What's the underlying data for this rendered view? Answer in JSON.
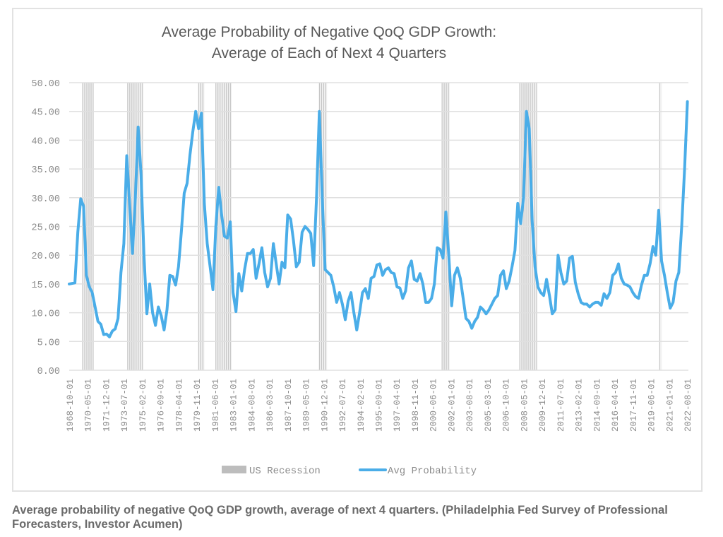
{
  "caption": "Average probability of negative QoQ GDP growth, average of next 4 quarters. (Philadelphia Fed Survey of Professional Forecasters, Investor Acumen)",
  "colors": {
    "line": "#4aade8",
    "recession": "#bdbdbd",
    "grid": "#e0e0e0",
    "text": "#8c8c8c",
    "title": "#595959"
  },
  "chart_data": {
    "type": "line",
    "title": "Average Probability of Negative QoQ GDP Growth:",
    "subtitle": "Average of Each of Next 4 Quarters",
    "xlabel": "",
    "ylabel": "",
    "ylim": [
      0,
      50
    ],
    "xlim": [
      "1968-10-01",
      "2022-08-01"
    ],
    "grid": true,
    "legend_position": "bottom",
    "y_ticks": [
      "0.00",
      "5.00",
      "10.00",
      "15.00",
      "20.00",
      "25.00",
      "30.00",
      "35.00",
      "40.00",
      "45.00",
      "50.00"
    ],
    "x_ticks": [
      "1968-10-01",
      "1970-05-01",
      "1971-12-01",
      "1973-07-01",
      "1975-02-01",
      "1976-09-01",
      "1978-04-01",
      "1979-11-01",
      "1981-06-01",
      "1983-01-01",
      "1984-08-01",
      "1986-03-01",
      "1987-10-01",
      "1989-05-01",
      "1990-12-01",
      "1992-07-01",
      "1994-02-01",
      "1995-09-01",
      "1997-04-01",
      "1998-11-01",
      "2000-06-01",
      "2002-01-01",
      "2003-08-01",
      "2005-03-01",
      "2006-10-01",
      "2008-05-01",
      "2009-12-01",
      "2011-07-01",
      "2013-02-01",
      "2014-09-01",
      "2016-04-01",
      "2017-11-01",
      "2019-06-01",
      "2021-01-01",
      "2022-08-01"
    ],
    "legend": [
      {
        "name": "US Recession",
        "kind": "bar"
      },
      {
        "name": "Avg Probability",
        "kind": "line"
      }
    ],
    "recessions": [
      {
        "start": "1969-12-01",
        "end": "1970-11-01"
      },
      {
        "start": "1973-11-01",
        "end": "1975-03-01"
      },
      {
        "start": "1980-01-01",
        "end": "1980-07-01"
      },
      {
        "start": "1981-07-01",
        "end": "1982-11-01"
      },
      {
        "start": "1990-07-01",
        "end": "1991-03-01"
      },
      {
        "start": "2001-03-01",
        "end": "2001-11-01"
      },
      {
        "start": "2007-12-01",
        "end": "2009-06-01"
      },
      {
        "start": "2020-02-01",
        "end": "2020-04-01"
      }
    ],
    "series": [
      {
        "name": "Avg Probability",
        "x": [
          1968.75,
          1969.25,
          1969.5,
          1969.75,
          1970.0,
          1970.25,
          1970.5,
          1970.75,
          1971.0,
          1971.25,
          1971.5,
          1971.75,
          1972.0,
          1972.25,
          1972.5,
          1972.75,
          1973.0,
          1973.25,
          1973.5,
          1973.75,
          1974.0,
          1974.25,
          1974.5,
          1974.75,
          1975.0,
          1975.25,
          1975.5,
          1975.75,
          1976.0,
          1976.25,
          1976.5,
          1976.75,
          1977.0,
          1977.25,
          1977.5,
          1977.75,
          1978.0,
          1978.25,
          1978.5,
          1978.75,
          1979.0,
          1979.25,
          1979.5,
          1979.75,
          1980.0,
          1980.25,
          1980.5,
          1980.75,
          1981.0,
          1981.25,
          1981.5,
          1981.75,
          1982.0,
          1982.25,
          1982.5,
          1982.75,
          1983.0,
          1983.25,
          1983.5,
          1983.75,
          1984.0,
          1984.25,
          1984.5,
          1984.75,
          1985.0,
          1985.25,
          1985.5,
          1985.75,
          1986.0,
          1986.25,
          1986.5,
          1986.75,
          1987.0,
          1987.25,
          1987.5,
          1987.75,
          1988.0,
          1988.25,
          1988.5,
          1988.75,
          1989.0,
          1989.25,
          1989.5,
          1989.75,
          1990.0,
          1990.25,
          1990.5,
          1990.75,
          1991.0,
          1991.25,
          1991.5,
          1991.75,
          1992.0,
          1992.25,
          1992.5,
          1992.75,
          1993.0,
          1993.25,
          1993.5,
          1993.75,
          1994.0,
          1994.25,
          1994.5,
          1994.75,
          1995.0,
          1995.25,
          1995.5,
          1995.75,
          1996.0,
          1996.25,
          1996.5,
          1996.75,
          1997.0,
          1997.25,
          1997.5,
          1997.75,
          1998.0,
          1998.25,
          1998.5,
          1998.75,
          1999.0,
          1999.25,
          1999.5,
          1999.75,
          2000.0,
          2000.25,
          2000.5,
          2000.75,
          2001.0,
          2001.25,
          2001.5,
          2001.75,
          2002.0,
          2002.25,
          2002.5,
          2002.75,
          2003.0,
          2003.25,
          2003.5,
          2003.75,
          2004.0,
          2004.25,
          2004.5,
          2004.75,
          2005.0,
          2005.25,
          2005.5,
          2005.75,
          2006.0,
          2006.25,
          2006.5,
          2006.75,
          2007.0,
          2007.25,
          2007.5,
          2007.75,
          2008.0,
          2008.25,
          2008.5,
          2008.75,
          2009.0,
          2009.25,
          2009.5,
          2009.75,
          2010.0,
          2010.25,
          2010.5,
          2010.75,
          2011.0,
          2011.25,
          2011.5,
          2011.75,
          2012.0,
          2012.25,
          2012.5,
          2012.75,
          2013.0,
          2013.25,
          2013.5,
          2013.75,
          2014.0,
          2014.25,
          2014.5,
          2014.75,
          2015.0,
          2015.25,
          2015.5,
          2015.75,
          2016.0,
          2016.25,
          2016.5,
          2016.75,
          2017.0,
          2017.25,
          2017.5,
          2017.75,
          2018.0,
          2018.25,
          2018.5,
          2018.75,
          2019.0,
          2019.25,
          2019.5,
          2019.75,
          2020.0,
          2020.25,
          2020.5,
          2020.75,
          2021.0,
          2021.25,
          2021.5,
          2021.75,
          2022.0,
          2022.25,
          2022.5
        ],
        "values": [
          15.0,
          15.2,
          24.0,
          29.8,
          28.5,
          16.5,
          14.5,
          13.5,
          11.0,
          8.5,
          8.0,
          6.2,
          6.3,
          5.8,
          6.8,
          7.2,
          9.0,
          17.0,
          22.0,
          37.3,
          29.0,
          20.3,
          30.0,
          42.3,
          34.0,
          20.0,
          9.8,
          15.0,
          10.0,
          7.8,
          11.0,
          9.5,
          7.0,
          10.5,
          16.5,
          16.3,
          14.8,
          18.0,
          24.0,
          30.8,
          32.5,
          37.5,
          41.5,
          45.0,
          42.0,
          44.7,
          29.0,
          22.0,
          18.0,
          14.0,
          25.0,
          31.8,
          27.0,
          23.3,
          23.0,
          25.8,
          13.5,
          10.2,
          16.8,
          13.8,
          17.5,
          20.3,
          20.3,
          21.0,
          16.0,
          18.5,
          21.3,
          17.0,
          14.5,
          16.0,
          22.0,
          18.5,
          15.0,
          18.8,
          17.8,
          27.0,
          26.3,
          22.5,
          18.0,
          18.8,
          24.0,
          25.0,
          24.5,
          23.8,
          18.2,
          30.0,
          45.0,
          30.0,
          17.5,
          17.0,
          16.5,
          14.5,
          11.8,
          13.5,
          11.5,
          8.8,
          12.0,
          13.5,
          10.0,
          7.0,
          10.0,
          13.5,
          14.2,
          12.5,
          16.0,
          16.3,
          18.3,
          18.5,
          16.5,
          17.5,
          17.8,
          17.0,
          16.8,
          14.5,
          14.3,
          12.5,
          13.8,
          17.8,
          19.0,
          15.8,
          15.5,
          16.8,
          15.0,
          11.8,
          11.8,
          12.5,
          15.0,
          21.3,
          21.0,
          19.5,
          27.5,
          20.0,
          11.2,
          16.5,
          17.8,
          16.0,
          12.5,
          9.0,
          8.5,
          7.3,
          8.5,
          9.2,
          11.0,
          10.5,
          9.8,
          10.5,
          11.5,
          12.5,
          13.0,
          16.5,
          17.3,
          14.2,
          15.5,
          18.0,
          20.8,
          29.0,
          25.5,
          30.0,
          45.0,
          42.0,
          26.0,
          18.0,
          14.5,
          13.5,
          13.0,
          15.8,
          13.0,
          9.8,
          10.5,
          20.0,
          17.0,
          15.0,
          15.5,
          19.5,
          19.8,
          15.3,
          13.3,
          11.8,
          11.5,
          11.5,
          11.0,
          11.5,
          11.8,
          11.8,
          11.3,
          13.3,
          12.5,
          13.5,
          16.5,
          17.0,
          18.5,
          16.0,
          15.0,
          14.8,
          14.5,
          13.5,
          12.8,
          12.5,
          14.8,
          16.5,
          16.5,
          18.5,
          21.5,
          20.0,
          27.8,
          19.0,
          16.5,
          13.5,
          10.8,
          11.8,
          15.5,
          17.0,
          25.0,
          35.0,
          46.7
        ]
      }
    ]
  }
}
